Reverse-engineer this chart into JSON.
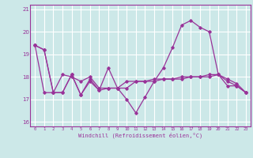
{
  "xlabel": "Windchill (Refroidissement éolien,°C)",
  "bg_color": "#cce8e8",
  "grid_color": "#ffffff",
  "line_color": "#993399",
  "xlim": [
    -0.5,
    23.5
  ],
  "ylim": [
    15.8,
    21.2
  ],
  "yticks": [
    16,
    17,
    18,
    19,
    20,
    21
  ],
  "xticks": [
    0,
    1,
    2,
    3,
    4,
    5,
    6,
    7,
    8,
    9,
    10,
    11,
    12,
    13,
    14,
    15,
    16,
    17,
    18,
    19,
    20,
    21,
    22,
    23
  ],
  "series": [
    [
      19.4,
      19.2,
      17.3,
      17.3,
      18.1,
      17.2,
      17.9,
      17.4,
      18.4,
      17.5,
      17.0,
      16.4,
      17.1,
      17.8,
      18.4,
      19.3,
      20.3,
      20.5,
      20.2,
      20.0,
      18.1,
      17.6,
      17.6,
      17.3
    ],
    [
      19.4,
      17.3,
      17.3,
      18.1,
      18.0,
      17.8,
      18.0,
      17.5,
      17.5,
      17.5,
      17.8,
      17.8,
      17.8,
      17.9,
      17.9,
      17.9,
      18.0,
      18.0,
      18.0,
      18.1,
      18.1,
      17.9,
      17.7,
      17.3
    ],
    [
      19.4,
      19.2,
      17.3,
      17.3,
      18.1,
      17.2,
      17.8,
      17.4,
      17.5,
      17.5,
      17.5,
      17.8,
      17.8,
      17.8,
      17.9,
      17.9,
      17.9,
      18.0,
      18.0,
      18.0,
      18.1,
      17.8,
      17.6,
      17.3
    ]
  ]
}
